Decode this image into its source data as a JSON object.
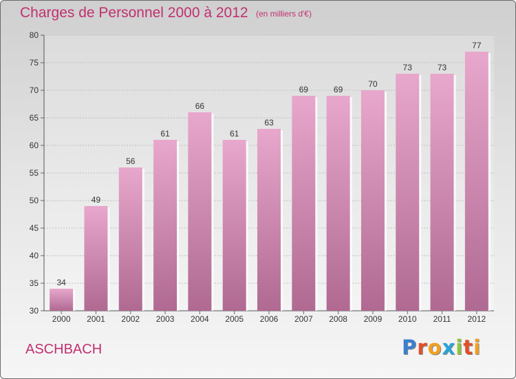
{
  "header": {
    "title": "Charges de Personnel 2000 à 2012",
    "subtitle": "(en milliers d'€)"
  },
  "footer": {
    "town": "ASCHBACH",
    "logo": "Proxiti"
  },
  "colors": {
    "accent": "#c03070",
    "bar_top": "#e8a7cc",
    "bar_bottom": "#b06a92"
  },
  "chart_data": {
    "type": "bar",
    "categories": [
      "2000",
      "2001",
      "2002",
      "2003",
      "2004",
      "2005",
      "2006",
      "2007",
      "2008",
      "2009",
      "2010",
      "2011",
      "2012"
    ],
    "values": [
      34,
      49,
      56,
      61,
      66,
      61,
      63,
      69,
      69,
      70,
      73,
      73,
      77
    ],
    "title": "Charges de Personnel 2000 à 2012",
    "ylim": [
      30,
      80
    ],
    "yticks": [
      30,
      35,
      40,
      45,
      50,
      55,
      60,
      65,
      70,
      75,
      80
    ],
    "grid": true,
    "data_labels": true
  }
}
